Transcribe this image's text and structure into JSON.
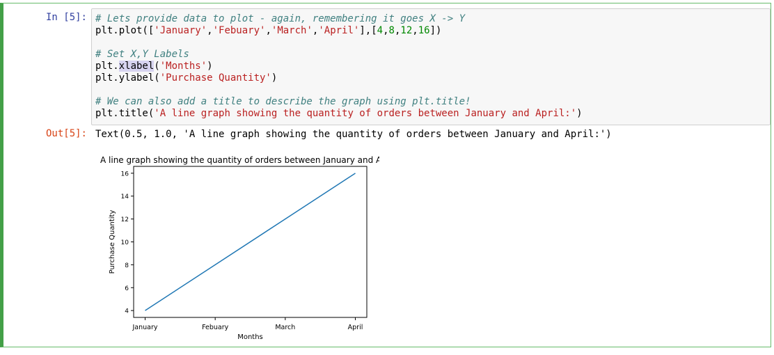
{
  "cell": {
    "in_prompt": "In [5]:",
    "out_prompt": "Out[5]:",
    "code_lines": [
      {
        "segments": [
          {
            "t": "# Lets provide data to plot - again, remembering it goes X -> Y",
            "c": "cm"
          }
        ]
      },
      {
        "segments": [
          {
            "t": "plt.plot(["
          },
          {
            "t": "'January'",
            "c": "st"
          },
          {
            "t": ","
          },
          {
            "t": "'Febuary'",
            "c": "st"
          },
          {
            "t": ","
          },
          {
            "t": "'March'",
            "c": "st"
          },
          {
            "t": ","
          },
          {
            "t": "'April'",
            "c": "st"
          },
          {
            "t": "],["
          },
          {
            "t": "4",
            "c": "nu"
          },
          {
            "t": ","
          },
          {
            "t": "8",
            "c": "nu"
          },
          {
            "t": ","
          },
          {
            "t": "12",
            "c": "nu"
          },
          {
            "t": ","
          },
          {
            "t": "16",
            "c": "nu"
          },
          {
            "t": "])"
          }
        ]
      },
      {
        "segments": []
      },
      {
        "segments": [
          {
            "t": "# Set X,Y Labels",
            "c": "cm"
          }
        ]
      },
      {
        "segments": [
          {
            "t": "plt."
          },
          {
            "t": "xlabel",
            "c": "hl"
          },
          {
            "t": "("
          },
          {
            "t": "'Months'",
            "c": "st"
          },
          {
            "t": ")"
          }
        ]
      },
      {
        "segments": [
          {
            "t": "plt.ylabel("
          },
          {
            "t": "'Purchase Quantity'",
            "c": "st"
          },
          {
            "t": ")"
          }
        ]
      },
      {
        "segments": []
      },
      {
        "segments": [
          {
            "t": "# We can also add a title to describe the graph using plt.title!",
            "c": "cm"
          }
        ]
      },
      {
        "segments": [
          {
            "t": "plt.title("
          },
          {
            "t": "'A line graph showing the quantity of orders between January and April:'",
            "c": "st"
          },
          {
            "t": ")"
          }
        ]
      }
    ],
    "output_text": "Text(0.5, 1.0, 'A line graph showing the quantity of orders between January and April:')"
  },
  "chart_data": {
    "type": "line",
    "title": "A line graph showing the quantity of orders between January and April:",
    "xlabel": "Months",
    "ylabel": "Purchase Quantity",
    "categories": [
      "January",
      "Febuary",
      "March",
      "April"
    ],
    "series": [
      {
        "values": [
          4,
          8,
          12,
          16
        ],
        "color": "#1f77b4"
      }
    ],
    "yticks": [
      4,
      6,
      8,
      10,
      12,
      14,
      16
    ],
    "ylim": [
      3.4,
      16.6
    ],
    "grid": false
  }
}
